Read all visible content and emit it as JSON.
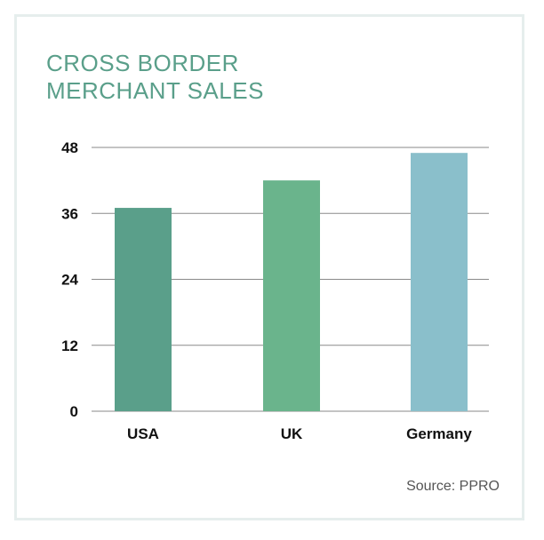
{
  "title_lines": [
    "CROSS BORDER",
    "MERCHANT SALES"
  ],
  "source": "Source: PPRO",
  "colors": {
    "title": "#5a9f8a",
    "grid": "#8a8a8a",
    "axis_text": "#111111"
  },
  "chart_data": {
    "type": "bar",
    "title": "CROSS BORDER MERCHANT SALES",
    "categories": [
      "USA",
      "UK",
      "Germany"
    ],
    "values": [
      37,
      42,
      47
    ],
    "bar_colors": [
      "#5a9f8a",
      "#6ab48c",
      "#8abfcb"
    ],
    "ylim": [
      0,
      48
    ],
    "yticks": [
      0,
      12,
      24,
      36,
      48
    ],
    "ytick_labels": [
      "0",
      "12",
      "24",
      "36",
      "48"
    ],
    "xlabel": "",
    "ylabel": "",
    "grid": true
  }
}
